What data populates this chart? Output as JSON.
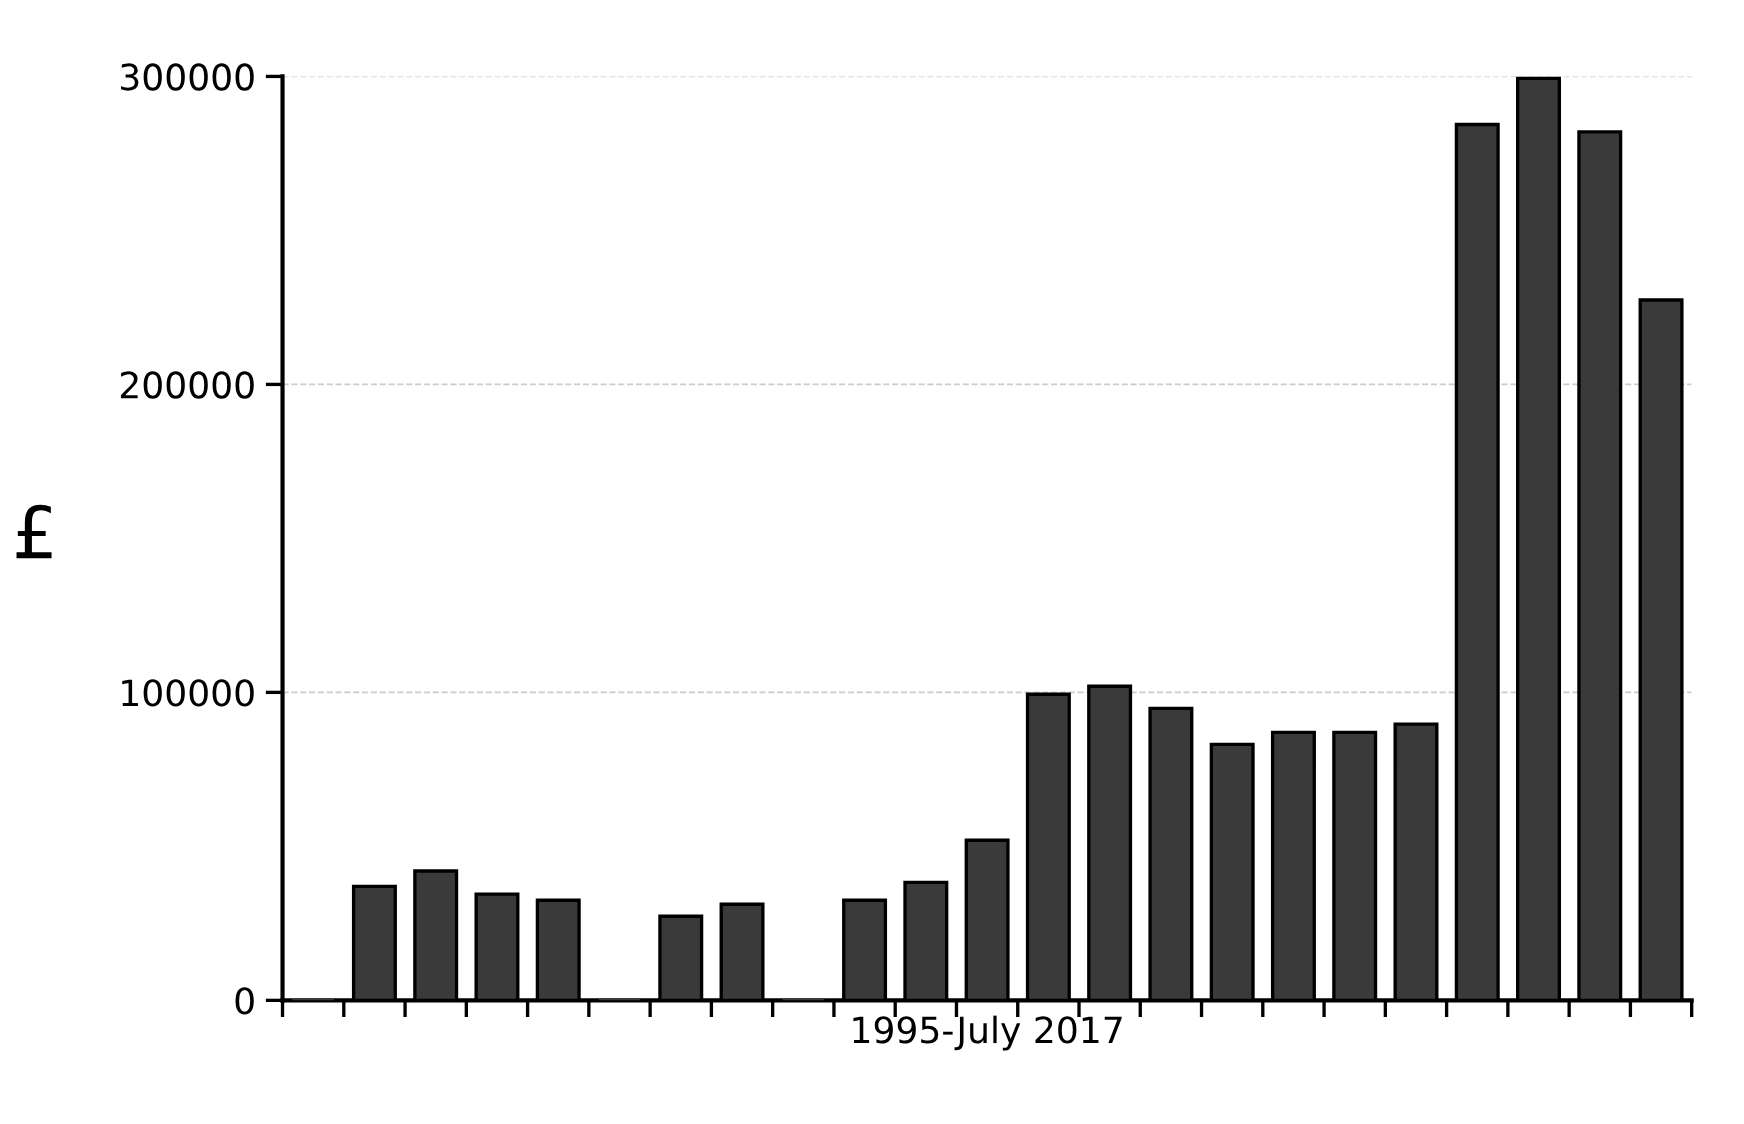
{
  "chart_data": {
    "type": "bar",
    "xlabel": "1995-July 2017",
    "ylabel": "£",
    "categories": [
      null,
      null,
      null,
      null,
      null,
      null,
      null,
      null,
      null,
      null,
      null,
      null,
      null,
      null,
      null,
      null,
      null,
      null,
      null,
      null,
      null,
      null,
      null
    ],
    "values": [
      0,
      37000,
      42000,
      34500,
      32500,
      0,
      27300,
      31200,
      0,
      32500,
      38300,
      52000,
      99400,
      102000,
      94800,
      83100,
      87000,
      87000,
      89700,
      284400,
      299400,
      282000,
      227400
    ],
    "color": "#3a3a3a",
    "ylim": [
      0,
      300000
    ],
    "yticks": [
      0,
      100000,
      200000,
      300000
    ],
    "grid": "y"
  }
}
